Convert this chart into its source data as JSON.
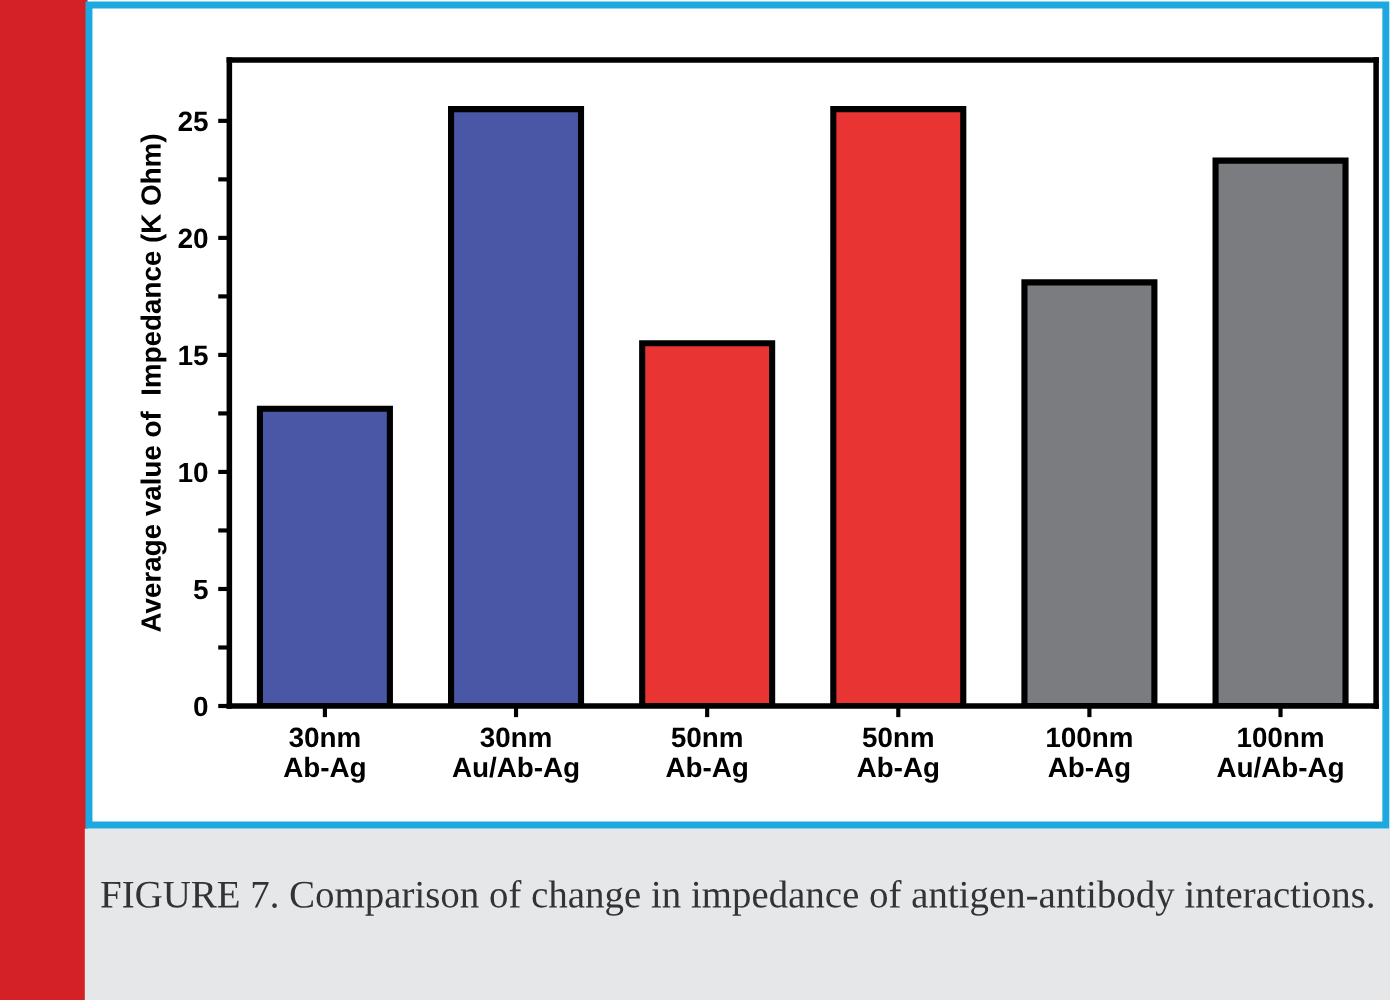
{
  "chart_data": {
    "type": "bar",
    "ylabel": "Average value of  Impedance (K Ohm)",
    "categories": [
      "30nm\nAb-Ag",
      "30nm\nAu/Ab-Ag",
      "50nm\nAb-Ag",
      "50nm\nAb-Ag",
      "100nm\nAb-Ag",
      "100nm\nAu/Ab-Ag"
    ],
    "values": [
      12.7,
      25.5,
      15.5,
      25.5,
      18.1,
      23.3
    ],
    "colors": [
      "#4a56a6",
      "#4a56a6",
      "#e83433",
      "#e83433",
      "#7b7c80",
      "#7b7c80"
    ],
    "ylim": [
      0,
      27.6
    ],
    "yticks": [
      0,
      {
        "value": 2.5,
        "label": null
      },
      5,
      {
        "value": 7.5,
        "label": null
      },
      10,
      {
        "value": 12.5,
        "label": null
      },
      15,
      {
        "value": 17.5,
        "label": null
      },
      20,
      {
        "value": 22.5,
        "label": null
      },
      25
    ],
    "grid": false,
    "annotations": [
      "FIGURE 7. Comparison of change in impedance of antigen-antibody interactions."
    ]
  }
}
